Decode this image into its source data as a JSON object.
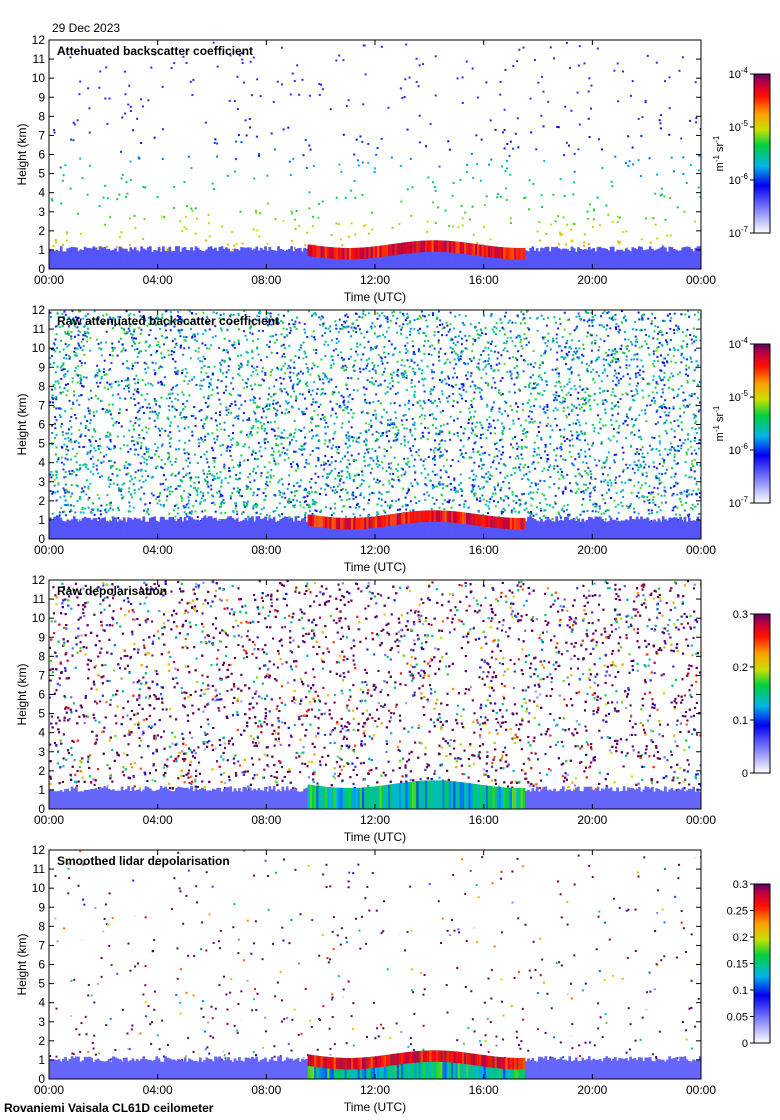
{
  "header": {
    "date": "29 Dec 2023"
  },
  "footer": {
    "label": "Rovaniemi Vaisala CL61D ceilometer"
  },
  "colors": {
    "background": "#ffffff",
    "axis": "#000000",
    "nodata": "#ffffff",
    "noise_gray": "#d6d6d6"
  },
  "chart_data": [
    {
      "type": "heatmap",
      "title": "Attenuated backscatter coefficient",
      "xlabel": "Time (UTC)",
      "ylabel": "Height (km)",
      "x_ticks": [
        "00:00",
        "04:00",
        "08:00",
        "12:00",
        "16:00",
        "20:00",
        "00:00"
      ],
      "y_ticks": [
        "0",
        "1",
        "2",
        "3",
        "4",
        "5",
        "6",
        "7",
        "8",
        "9",
        "10",
        "11",
        "12"
      ],
      "xlim_hours": [
        0,
        24
      ],
      "ylim": [
        0,
        12
      ],
      "color_scale": "log",
      "colorbar": {
        "ticks": [
          "10-7",
          "10-6",
          "10-5",
          "10-4"
        ],
        "tick_display": [
          [
            "10",
            "-7"
          ],
          [
            "10",
            "-6"
          ],
          [
            "10",
            "-5"
          ],
          [
            "10",
            "-4"
          ]
        ],
        "unit_display": [
          "m",
          "-1",
          " sr",
          "-1"
        ],
        "range": [
          1e-07,
          0.0001
        ]
      },
      "features": {
        "cloud_base_km": [
          0.9,
          1.3
        ],
        "cloud_hours": [
          9.5,
          17.5
        ],
        "noise_density": 0.04
      }
    },
    {
      "type": "heatmap",
      "title": "Raw attenuated backscatter coefficient",
      "xlabel": "Time (UTC)",
      "ylabel": "Height (km)",
      "x_ticks": [
        "00:00",
        "04:00",
        "08:00",
        "12:00",
        "16:00",
        "20:00",
        "00:00"
      ],
      "y_ticks": [
        "0",
        "1",
        "2",
        "3",
        "4",
        "5",
        "6",
        "7",
        "8",
        "9",
        "10",
        "11",
        "12"
      ],
      "xlim_hours": [
        0,
        24
      ],
      "ylim": [
        0,
        12
      ],
      "color_scale": "log",
      "colorbar": {
        "ticks": [
          "10-7",
          "10-6",
          "10-5",
          "10-4"
        ],
        "tick_display": [
          [
            "10",
            "-7"
          ],
          [
            "10",
            "-6"
          ],
          [
            "10",
            "-5"
          ],
          [
            "10",
            "-4"
          ]
        ],
        "unit_display": [
          "m",
          "-1",
          " sr",
          "-1"
        ],
        "range": [
          1e-07,
          0.0001
        ]
      },
      "features": {
        "cloud_base_km": [
          0.9,
          1.3
        ],
        "cloud_hours": [
          9.5,
          17.5
        ],
        "noise_density": 0.55
      }
    },
    {
      "type": "heatmap",
      "title": "Raw depolarisation",
      "xlabel": "Time (UTC)",
      "ylabel": "Height (km)",
      "x_ticks": [
        "00:00",
        "04:00",
        "08:00",
        "12:00",
        "16:00",
        "20:00",
        "00:00"
      ],
      "y_ticks": [
        "0",
        "1",
        "2",
        "3",
        "4",
        "5",
        "6",
        "7",
        "8",
        "9",
        "10",
        "11",
        "12"
      ],
      "xlim_hours": [
        0,
        24
      ],
      "ylim": [
        0,
        12
      ],
      "color_scale": "linear",
      "colorbar": {
        "ticks": [
          "0",
          "0.1",
          "0.2",
          "0.3"
        ],
        "range": [
          0,
          0.3
        ]
      },
      "features": {
        "cloud_base_km": [
          0.9,
          1.3
        ],
        "cloud_hours": [
          9.5,
          17.5
        ],
        "noise_density": 0.85
      }
    },
    {
      "type": "heatmap",
      "title": "Smoothed lidar depolarisation",
      "xlabel": "Time (UTC)",
      "ylabel": "Height (km)",
      "x_ticks": [
        "00:00",
        "04:00",
        "08:00",
        "12:00",
        "16:00",
        "20:00",
        "00:00"
      ],
      "y_ticks": [
        "0",
        "1",
        "2",
        "3",
        "4",
        "5",
        "6",
        "7",
        "8",
        "9",
        "10",
        "11",
        "12"
      ],
      "xlim_hours": [
        0,
        24
      ],
      "ylim": [
        0,
        12
      ],
      "color_scale": "linear",
      "colorbar": {
        "ticks": [
          "0",
          "0.05",
          "0.1",
          "0.15",
          "0.2",
          "0.25",
          "0.3"
        ],
        "range": [
          0,
          0.3
        ]
      },
      "features": {
        "cloud_base_km": [
          0.9,
          1.3
        ],
        "cloud_hours": [
          9.5,
          17.5
        ],
        "noise_density": 0.03
      }
    }
  ]
}
